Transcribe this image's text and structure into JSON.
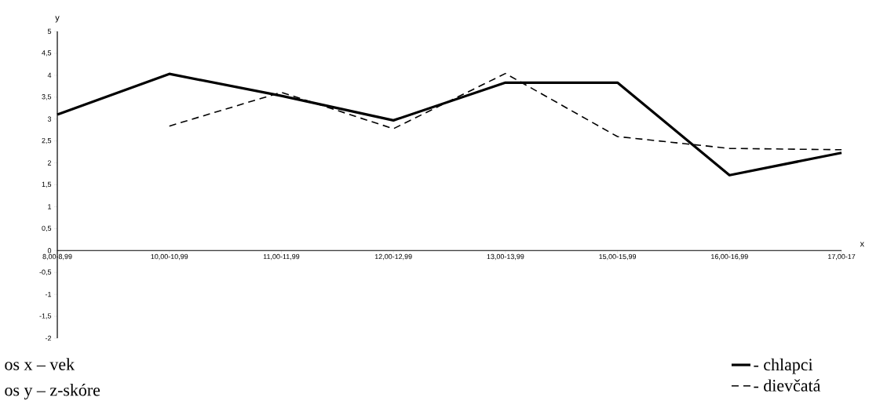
{
  "chart_data": {
    "type": "line",
    "xlabel": "x",
    "ylabel": "y",
    "categories": [
      "8,00-8,99",
      "10,00-10,99",
      "11,00-11,99",
      "12,00-12,99",
      "13,00-13,99",
      "15,00-15,99",
      "16,00-16,99",
      "17,00-17"
    ],
    "series": [
      {
        "name": "- chlapci",
        "color": "#000000",
        "line_style": "solid",
        "values": [
          3.1,
          4.03,
          3.53,
          2.97,
          3.83,
          3.83,
          1.72,
          2.23
        ]
      },
      {
        "name": "- dievčatá",
        "color": "#000000",
        "line_style": "dashed",
        "values": [
          null,
          2.84,
          3.61,
          2.78,
          4.04,
          2.6,
          2.33,
          2.3
        ]
      }
    ],
    "ylim": [
      -2,
      5
    ],
    "yticks": [
      {
        "value": -2,
        "label": "-2"
      },
      {
        "value": -1.5,
        "label": "-1,5"
      },
      {
        "value": -1,
        "label": "-1"
      },
      {
        "value": -0.5,
        "label": "-0,5"
      },
      {
        "value": 0,
        "label": "0"
      },
      {
        "value": 0.5,
        "label": "0,5"
      },
      {
        "value": 1,
        "label": "1"
      },
      {
        "value": 1.5,
        "label": "1,5"
      },
      {
        "value": 2,
        "label": "2"
      },
      {
        "value": 2.5,
        "label": "2,5"
      },
      {
        "value": 3,
        "label": "3"
      },
      {
        "value": 3.5,
        "label": "3,5"
      },
      {
        "value": 4,
        "label": "4"
      },
      {
        "value": 4.5,
        "label": "4,5"
      },
      {
        "value": 5,
        "label": "5"
      }
    ],
    "grid": false,
    "legend": "bottom right",
    "marker": "none",
    "annotations": [
      "os x – vek",
      "os y – z-skóre"
    ]
  }
}
